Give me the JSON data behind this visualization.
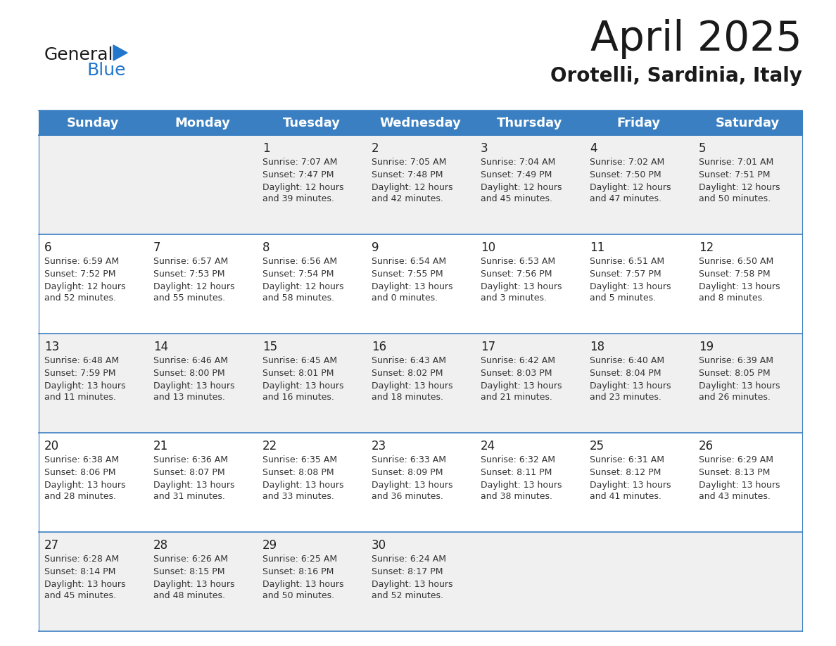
{
  "title": "April 2025",
  "subtitle": "Orotelli, Sardinia, Italy",
  "header_color": "#3A7FC1",
  "header_text_color": "#FFFFFF",
  "day_names": [
    "Sunday",
    "Monday",
    "Tuesday",
    "Wednesday",
    "Thursday",
    "Friday",
    "Saturday"
  ],
  "bg_color": "#FFFFFF",
  "cell_bg_row0": "#F0F0F0",
  "cell_bg_row1": "#FFFFFF",
  "cell_bg_row2": "#F0F0F0",
  "cell_bg_row3": "#FFFFFF",
  "cell_bg_row4": "#F0F0F0",
  "row_line_color": "#3A7FC1",
  "text_color": "#333333",
  "days": [
    {
      "day": 1,
      "col": 2,
      "row": 0,
      "sunrise": "7:07 AM",
      "sunset": "7:47 PM",
      "daylight": "12 hours and 39 minutes."
    },
    {
      "day": 2,
      "col": 3,
      "row": 0,
      "sunrise": "7:05 AM",
      "sunset": "7:48 PM",
      "daylight": "12 hours and 42 minutes."
    },
    {
      "day": 3,
      "col": 4,
      "row": 0,
      "sunrise": "7:04 AM",
      "sunset": "7:49 PM",
      "daylight": "12 hours and 45 minutes."
    },
    {
      "day": 4,
      "col": 5,
      "row": 0,
      "sunrise": "7:02 AM",
      "sunset": "7:50 PM",
      "daylight": "12 hours and 47 minutes."
    },
    {
      "day": 5,
      "col": 6,
      "row": 0,
      "sunrise": "7:01 AM",
      "sunset": "7:51 PM",
      "daylight": "12 hours and 50 minutes."
    },
    {
      "day": 6,
      "col": 0,
      "row": 1,
      "sunrise": "6:59 AM",
      "sunset": "7:52 PM",
      "daylight": "12 hours and 52 minutes."
    },
    {
      "day": 7,
      "col": 1,
      "row": 1,
      "sunrise": "6:57 AM",
      "sunset": "7:53 PM",
      "daylight": "12 hours and 55 minutes."
    },
    {
      "day": 8,
      "col": 2,
      "row": 1,
      "sunrise": "6:56 AM",
      "sunset": "7:54 PM",
      "daylight": "12 hours and 58 minutes."
    },
    {
      "day": 9,
      "col": 3,
      "row": 1,
      "sunrise": "6:54 AM",
      "sunset": "7:55 PM",
      "daylight": "13 hours and 0 minutes."
    },
    {
      "day": 10,
      "col": 4,
      "row": 1,
      "sunrise": "6:53 AM",
      "sunset": "7:56 PM",
      "daylight": "13 hours and 3 minutes."
    },
    {
      "day": 11,
      "col": 5,
      "row": 1,
      "sunrise": "6:51 AM",
      "sunset": "7:57 PM",
      "daylight": "13 hours and 5 minutes."
    },
    {
      "day": 12,
      "col": 6,
      "row": 1,
      "sunrise": "6:50 AM",
      "sunset": "7:58 PM",
      "daylight": "13 hours and 8 minutes."
    },
    {
      "day": 13,
      "col": 0,
      "row": 2,
      "sunrise": "6:48 AM",
      "sunset": "7:59 PM",
      "daylight": "13 hours and 11 minutes."
    },
    {
      "day": 14,
      "col": 1,
      "row": 2,
      "sunrise": "6:46 AM",
      "sunset": "8:00 PM",
      "daylight": "13 hours and 13 minutes."
    },
    {
      "day": 15,
      "col": 2,
      "row": 2,
      "sunrise": "6:45 AM",
      "sunset": "8:01 PM",
      "daylight": "13 hours and 16 minutes."
    },
    {
      "day": 16,
      "col": 3,
      "row": 2,
      "sunrise": "6:43 AM",
      "sunset": "8:02 PM",
      "daylight": "13 hours and 18 minutes."
    },
    {
      "day": 17,
      "col": 4,
      "row": 2,
      "sunrise": "6:42 AM",
      "sunset": "8:03 PM",
      "daylight": "13 hours and 21 minutes."
    },
    {
      "day": 18,
      "col": 5,
      "row": 2,
      "sunrise": "6:40 AM",
      "sunset": "8:04 PM",
      "daylight": "13 hours and 23 minutes."
    },
    {
      "day": 19,
      "col": 6,
      "row": 2,
      "sunrise": "6:39 AM",
      "sunset": "8:05 PM",
      "daylight": "13 hours and 26 minutes."
    },
    {
      "day": 20,
      "col": 0,
      "row": 3,
      "sunrise": "6:38 AM",
      "sunset": "8:06 PM",
      "daylight": "13 hours and 28 minutes."
    },
    {
      "day": 21,
      "col": 1,
      "row": 3,
      "sunrise": "6:36 AM",
      "sunset": "8:07 PM",
      "daylight": "13 hours and 31 minutes."
    },
    {
      "day": 22,
      "col": 2,
      "row": 3,
      "sunrise": "6:35 AM",
      "sunset": "8:08 PM",
      "daylight": "13 hours and 33 minutes."
    },
    {
      "day": 23,
      "col": 3,
      "row": 3,
      "sunrise": "6:33 AM",
      "sunset": "8:09 PM",
      "daylight": "13 hours and 36 minutes."
    },
    {
      "day": 24,
      "col": 4,
      "row": 3,
      "sunrise": "6:32 AM",
      "sunset": "8:11 PM",
      "daylight": "13 hours and 38 minutes."
    },
    {
      "day": 25,
      "col": 5,
      "row": 3,
      "sunrise": "6:31 AM",
      "sunset": "8:12 PM",
      "daylight": "13 hours and 41 minutes."
    },
    {
      "day": 26,
      "col": 6,
      "row": 3,
      "sunrise": "6:29 AM",
      "sunset": "8:13 PM",
      "daylight": "13 hours and 43 minutes."
    },
    {
      "day": 27,
      "col": 0,
      "row": 4,
      "sunrise": "6:28 AM",
      "sunset": "8:14 PM",
      "daylight": "13 hours and 45 minutes."
    },
    {
      "day": 28,
      "col": 1,
      "row": 4,
      "sunrise": "6:26 AM",
      "sunset": "8:15 PM",
      "daylight": "13 hours and 48 minutes."
    },
    {
      "day": 29,
      "col": 2,
      "row": 4,
      "sunrise": "6:25 AM",
      "sunset": "8:16 PM",
      "daylight": "13 hours and 50 minutes."
    },
    {
      "day": 30,
      "col": 3,
      "row": 4,
      "sunrise": "6:24 AM",
      "sunset": "8:17 PM",
      "daylight": "13 hours and 52 minutes."
    }
  ],
  "cell_bg_colors": [
    "#F0F0F0",
    "#FFFFFF",
    "#F0F0F0",
    "#FFFFFF",
    "#F0F0F0"
  ],
  "logo_general_color": "#1a1a1a",
  "logo_blue_color": "#2277CC",
  "logo_triangle_color": "#2277CC",
  "title_fontsize": 42,
  "subtitle_fontsize": 20,
  "header_fontsize": 13,
  "day_num_fontsize": 12,
  "cell_text_fontsize": 9
}
